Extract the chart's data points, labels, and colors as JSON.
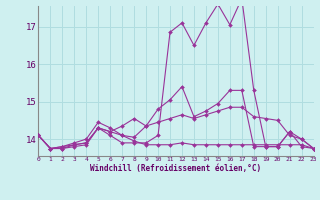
{
  "xlabel": "Windchill (Refroidissement éolien,°C)",
  "background_color": "#cff0f0",
  "grid_color": "#b0dde0",
  "line_color": "#993399",
  "x_ticks": [
    0,
    1,
    2,
    3,
    4,
    5,
    6,
    7,
    8,
    9,
    10,
    11,
    12,
    13,
    14,
    15,
    16,
    17,
    18,
    19,
    20,
    21,
    22,
    23
  ],
  "y_ticks": [
    14,
    15,
    16,
    17
  ],
  "ylim": [
    13.55,
    17.55
  ],
  "xlim": [
    0,
    23
  ],
  "series": [
    [
      14.1,
      13.75,
      13.75,
      13.8,
      13.85,
      14.3,
      14.2,
      14.1,
      13.95,
      13.85,
      13.85,
      13.85,
      13.9,
      13.85,
      13.85,
      13.85,
      13.85,
      13.85,
      13.85,
      13.85,
      13.85,
      13.85,
      13.85,
      13.75
    ],
    [
      14.1,
      13.75,
      13.8,
      13.85,
      13.9,
      14.3,
      14.2,
      14.35,
      14.55,
      14.35,
      14.45,
      14.55,
      14.65,
      14.55,
      14.65,
      14.75,
      14.85,
      14.85,
      14.6,
      14.55,
      14.5,
      14.1,
      14.0,
      13.75
    ],
    [
      14.1,
      13.75,
      13.8,
      13.9,
      14.0,
      14.45,
      14.3,
      14.1,
      14.05,
      14.35,
      14.8,
      15.05,
      15.4,
      14.6,
      14.75,
      14.95,
      15.3,
      15.3,
      13.8,
      13.8,
      13.8,
      14.2,
      13.8,
      13.75
    ],
    [
      14.1,
      13.75,
      13.75,
      13.85,
      13.9,
      14.3,
      14.1,
      13.9,
      13.9,
      13.9,
      14.1,
      16.85,
      17.1,
      16.5,
      17.1,
      17.6,
      17.05,
      17.75,
      15.3,
      13.8,
      13.8,
      14.2,
      14.0,
      13.75
    ]
  ]
}
